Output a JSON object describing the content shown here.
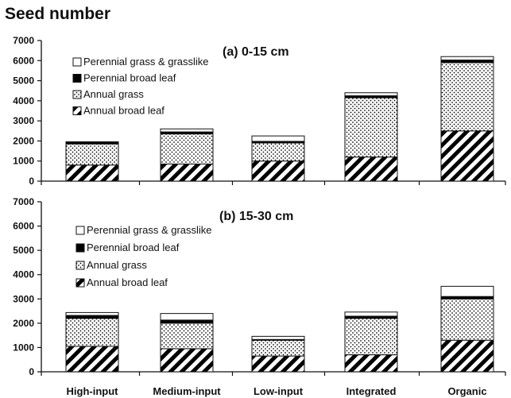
{
  "figure_title": "Seed number",
  "chart_data": [
    {
      "type": "bar",
      "stacked": true,
      "title": "(a)  0-15 cm",
      "categories": [
        "High-input",
        "Medium-input",
        "Low-input",
        "Integrated",
        "Organic"
      ],
      "ylim": [
        0,
        7000
      ],
      "yticks": [
        "0",
        "1000",
        "2000",
        "3000",
        "4000",
        "5000",
        "6000",
        "7000"
      ],
      "legend": [
        "Perennial grass & grasslike",
        "Perennial broad leaf",
        "Annual grass",
        "Annual broad leaf"
      ],
      "series": [
        {
          "name": "Annual broad leaf",
          "values": [
            800,
            850,
            1000,
            1200,
            2500
          ]
        },
        {
          "name": "Annual grass",
          "values": [
            1050,
            1500,
            900,
            2950,
            3400
          ]
        },
        {
          "name": "Perennial broad leaf",
          "values": [
            80,
            100,
            80,
            100,
            130
          ]
        },
        {
          "name": "Perennial grass & grasslike",
          "values": [
            30,
            150,
            270,
            150,
            170
          ]
        }
      ]
    },
    {
      "type": "bar",
      "stacked": true,
      "title": "(b)  15-30 cm",
      "categories": [
        "High-input",
        "Medium-input",
        "Low-input",
        "Integrated",
        "Organic"
      ],
      "ylim": [
        0,
        7000
      ],
      "yticks": [
        "0",
        "1000",
        "2000",
        "3000",
        "4000",
        "5000",
        "6000",
        "7000"
      ],
      "legend": [
        "Perennial grass & grasslike",
        "Perennial broad leaf",
        "Annual grass",
        "Annual broad leaf"
      ],
      "series": [
        {
          "name": "Annual broad leaf",
          "values": [
            1050,
            950,
            650,
            700,
            1300
          ]
        },
        {
          "name": "Annual grass",
          "values": [
            1150,
            1050,
            650,
            1500,
            1700
          ]
        },
        {
          "name": "Perennial broad leaf",
          "values": [
            120,
            130,
            30,
            90,
            100
          ]
        },
        {
          "name": "Perennial grass & grasslike",
          "values": [
            120,
            270,
            130,
            170,
            420
          ]
        }
      ]
    }
  ],
  "colors": {
    "axis": "#111111",
    "solid": "#000000",
    "fill": "#ffffff"
  }
}
